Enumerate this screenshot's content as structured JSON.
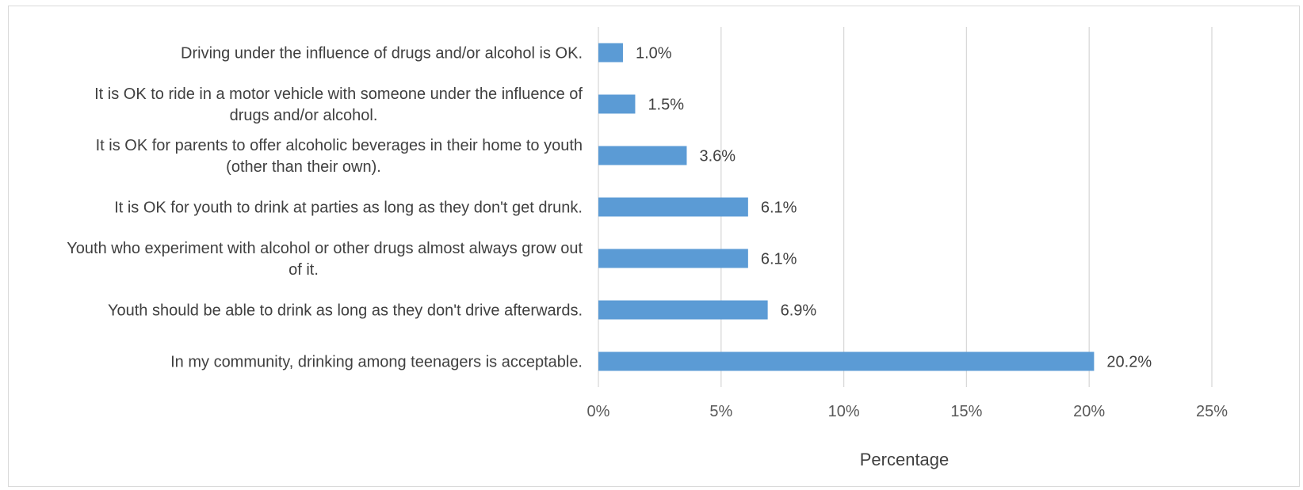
{
  "chart_data": {
    "type": "bar",
    "orientation": "horizontal",
    "categories": [
      "Driving under the influence of drugs and/or alcohol is OK.",
      "It is OK to ride in a motor vehicle with someone under the influence of drugs and/or alcohol.",
      "It is OK for parents to offer alcoholic beverages in their home to youth (other than their own).",
      "It is OK for youth to drink at parties as long as they don't get drunk.",
      "Youth who experiment with alcohol or other drugs almost always grow out of it.",
      "Youth should be able to drink as long as they don't drive afterwards.",
      "In my community, drinking among teenagers is acceptable."
    ],
    "values": [
      1.0,
      1.5,
      3.6,
      6.1,
      6.1,
      6.9,
      20.2
    ],
    "data_labels": [
      "1.0%",
      "1.5%",
      "3.6%",
      "6.1%",
      "6.1%",
      "6.9%",
      "20.2%"
    ],
    "xlabel": "Percentage",
    "ylabel": "",
    "title": "",
    "xlim": [
      0,
      25
    ],
    "x_ticks": [
      0,
      5,
      10,
      15,
      20,
      25
    ],
    "x_tick_labels": [
      "0%",
      "5%",
      "10%",
      "15%",
      "20%",
      "25%"
    ],
    "grid": true,
    "legend": false,
    "bar_color": "#5b9bd5",
    "grid_color": "#d9d9d9"
  }
}
